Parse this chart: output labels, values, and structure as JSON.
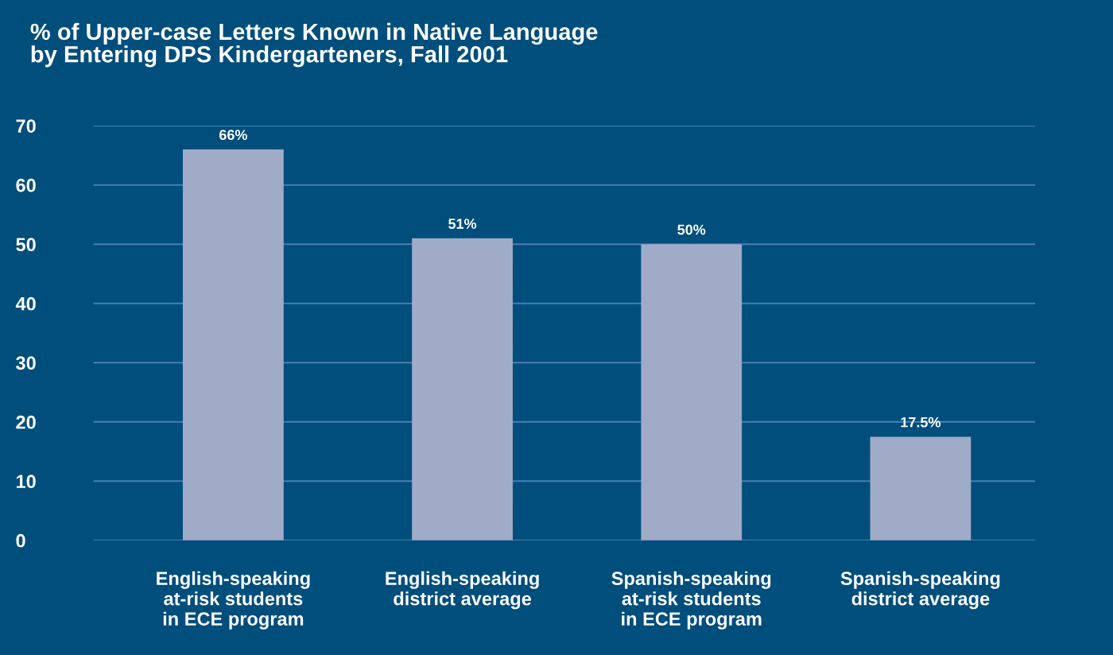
{
  "chart_data": {
    "type": "bar",
    "title": "% of Upper-case Letters Known in Native Language\nby Entering DPS Kindergarteners, Fall 2001",
    "categories": [
      "English-speaking\nat-risk students\nin ECE program",
      "English-speaking\ndistrict average",
      "Spanish-speaking\nat-risk students\nin ECE program",
      "Spanish-speaking\ndistrict average"
    ],
    "values": [
      66,
      51,
      50,
      17.5
    ],
    "value_labels": [
      "66%",
      "51%",
      "50%",
      "17.5%"
    ],
    "color": "#a0abc8",
    "ylim": [
      0,
      70
    ],
    "yticks": [
      0,
      10,
      20,
      30,
      40,
      50,
      60,
      70
    ],
    "grid": "y"
  }
}
